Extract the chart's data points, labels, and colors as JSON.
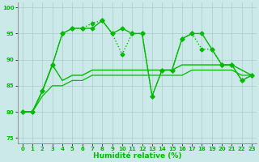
{
  "xlabel": "Humidité relative (%)",
  "background_color": "#cce9e9",
  "grid_color": "#aacccc",
  "line_color": "#00bb00",
  "xlim": [
    -0.5,
    23.5
  ],
  "ylim": [
    74,
    101
  ],
  "yticks": [
    75,
    80,
    85,
    90,
    95,
    100
  ],
  "xticks": [
    0,
    1,
    2,
    3,
    4,
    5,
    6,
    7,
    8,
    9,
    10,
    11,
    12,
    13,
    14,
    15,
    16,
    17,
    18,
    19,
    20,
    21,
    22,
    23
  ],
  "series": [
    {
      "x": [
        0,
        1,
        2,
        3,
        4,
        5,
        6,
        7,
        8,
        9,
        10,
        11,
        12,
        13,
        14,
        15,
        16,
        17,
        18,
        19,
        20,
        21,
        22,
        23
      ],
      "y": [
        80,
        80,
        84,
        89,
        95,
        96,
        96,
        96,
        97.5,
        95,
        96,
        95,
        95,
        83,
        88,
        88,
        94,
        95,
        95,
        92,
        89,
        89,
        86,
        87
      ],
      "style": "-",
      "marker": "D",
      "markersize": 2.5,
      "linewidth": 1.0
    },
    {
      "x": [
        0,
        1,
        2,
        3,
        4,
        5,
        6,
        7,
        8,
        9,
        10,
        11,
        12,
        13,
        14,
        15,
        16,
        17,
        18,
        19,
        20,
        21,
        22,
        23
      ],
      "y": [
        80,
        80,
        84,
        89,
        95,
        96,
        96,
        97,
        97.5,
        95,
        91,
        95,
        95,
        83,
        88,
        88,
        94,
        95,
        92,
        92,
        89,
        89,
        86,
        87
      ],
      "style": ":",
      "marker": "D",
      "markersize": 2.5,
      "linewidth": 1.0
    },
    {
      "x": [
        0,
        1,
        2,
        3,
        4,
        5,
        6,
        7,
        8,
        9,
        10,
        11,
        12,
        13,
        14,
        15,
        16,
        17,
        18,
        19,
        20,
        21,
        22,
        23
      ],
      "y": [
        80,
        80,
        84,
        89,
        86,
        87,
        87,
        88,
        88,
        88,
        88,
        88,
        88,
        88,
        88,
        88,
        89,
        89,
        89,
        89,
        89,
        89,
        88,
        87
      ],
      "style": "-",
      "marker": null,
      "markersize": 0,
      "linewidth": 1.0
    },
    {
      "x": [
        0,
        1,
        2,
        3,
        4,
        5,
        6,
        7,
        8,
        9,
        10,
        11,
        12,
        13,
        14,
        15,
        16,
        17,
        18,
        19,
        20,
        21,
        22,
        23
      ],
      "y": [
        80,
        80,
        83,
        85,
        85,
        86,
        86,
        87,
        87,
        87,
        87,
        87,
        87,
        87,
        87,
        87,
        87,
        88,
        88,
        88,
        88,
        88,
        87,
        87
      ],
      "style": "-",
      "marker": null,
      "markersize": 0,
      "linewidth": 0.9
    }
  ]
}
